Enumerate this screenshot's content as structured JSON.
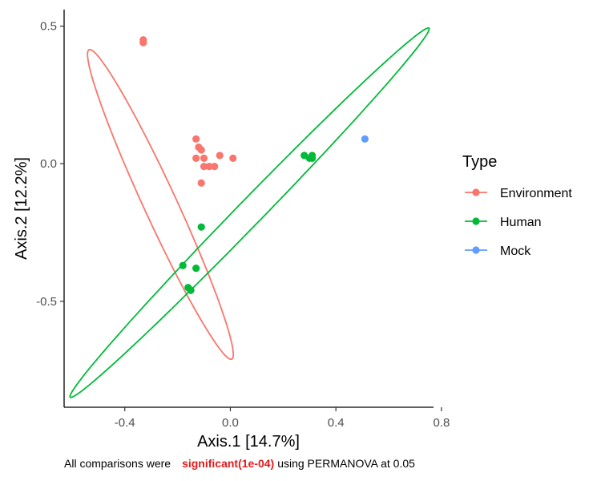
{
  "chart_data": {
    "type": "scatter",
    "xlabel": "Axis.1   [14.7%]",
    "ylabel": "Axis.2   [12.2%]",
    "xlim": [
      -0.63,
      0.77
    ],
    "ylim": [
      -0.885,
      0.56
    ],
    "x_ticks": [
      -0.4,
      0.0,
      0.4,
      0.8
    ],
    "x_tick_labels": [
      "-0.4",
      "0.0",
      "0.4",
      "0.8"
    ],
    "y_ticks": [
      0.5,
      0.0,
      -0.5
    ],
    "y_tick_labels": [
      "0.5",
      "0.0",
      "-0.5"
    ],
    "grid": false,
    "legend_title": "Type",
    "legend_position": "right",
    "series": [
      {
        "name": "Environment",
        "color": "#F8766D",
        "points": [
          [
            -0.33,
            0.45
          ],
          [
            -0.33,
            0.44
          ],
          [
            -0.13,
            0.09
          ],
          [
            -0.12,
            0.06
          ],
          [
            -0.11,
            0.05
          ],
          [
            -0.13,
            0.02
          ],
          [
            -0.1,
            0.02
          ],
          [
            -0.04,
            0.03
          ],
          [
            0.01,
            0.02
          ],
          [
            -0.1,
            -0.01
          ],
          [
            -0.08,
            -0.01
          ],
          [
            -0.06,
            -0.01
          ],
          [
            -0.11,
            -0.07
          ]
        ],
        "ellipse": {
          "center": [
            -0.265,
            -0.148
          ],
          "semi_major": 0.624,
          "semi_minor": 0.062,
          "angle_deg": -64.3
        }
      },
      {
        "name": "Human",
        "color": "#00BA38",
        "points": [
          [
            0.28,
            0.03
          ],
          [
            0.3,
            0.02
          ],
          [
            0.31,
            0.03
          ],
          [
            0.31,
            0.02
          ],
          [
            -0.11,
            -0.23
          ],
          [
            -0.18,
            -0.37
          ],
          [
            -0.13,
            -0.38
          ],
          [
            -0.16,
            -0.45
          ],
          [
            -0.15,
            -0.46
          ]
        ],
        "ellipse": {
          "center": [
            0.073,
            -0.178
          ],
          "semi_major": 0.955,
          "semi_minor": 0.047,
          "angle_deg": 44.6
        }
      },
      {
        "name": "Mock",
        "color": "#619CFF",
        "points": [
          [
            0.51,
            0.09
          ]
        ]
      }
    ]
  },
  "caption": {
    "prefix": "All comparisons were",
    "highlight": "significant(1e-04)",
    "suffix": "using PERMANOVA at 0.05",
    "highlight_color": "#e41a1c"
  }
}
